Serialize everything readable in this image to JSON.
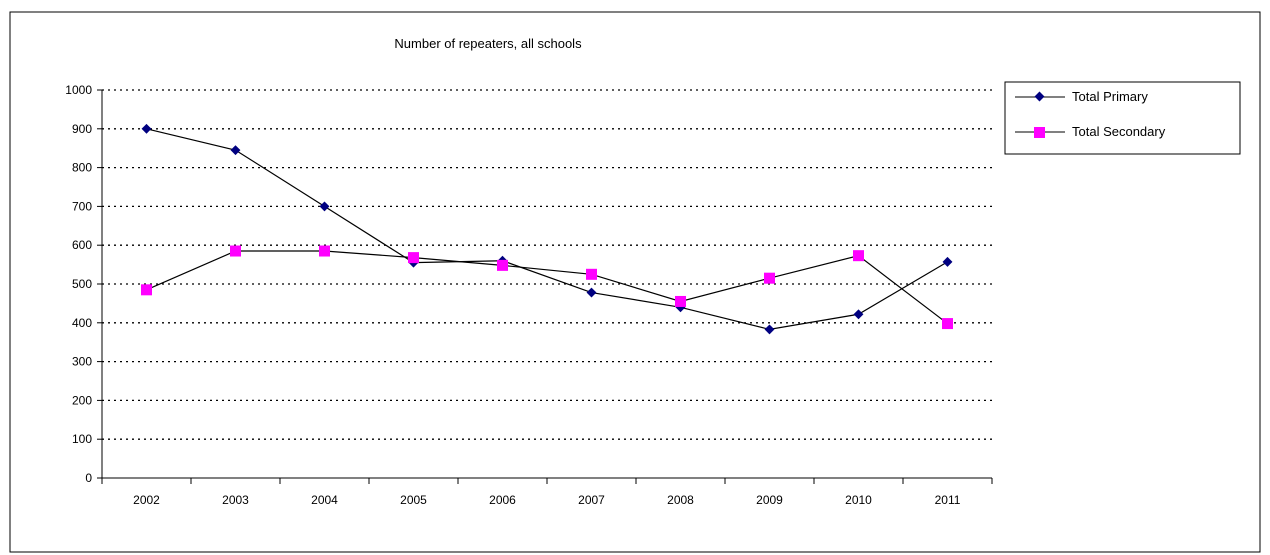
{
  "chart_data": {
    "type": "line",
    "title": "Number of repeaters, all schools",
    "xlabel": "",
    "ylabel": "",
    "categories": [
      "2002",
      "2003",
      "2004",
      "2005",
      "2006",
      "2007",
      "2008",
      "2009",
      "2010",
      "2011"
    ],
    "ylim": [
      0,
      1000
    ],
    "yticks": [
      "0",
      "100",
      "200",
      "300",
      "400",
      "500",
      "600",
      "700",
      "800",
      "900",
      "1000"
    ],
    "grid": true,
    "legend_position": "right",
    "series": [
      {
        "name": "Total Primary",
        "color": "#000080",
        "marker": "diamond",
        "values": [
          900,
          845,
          700,
          555,
          560,
          478,
          440,
          383,
          422,
          557
        ]
      },
      {
        "name": "Total Secondary",
        "color": "#FF00FF",
        "marker": "square",
        "values": [
          485,
          585,
          585,
          568,
          548,
          525,
          455,
          515,
          573,
          398
        ]
      }
    ]
  }
}
